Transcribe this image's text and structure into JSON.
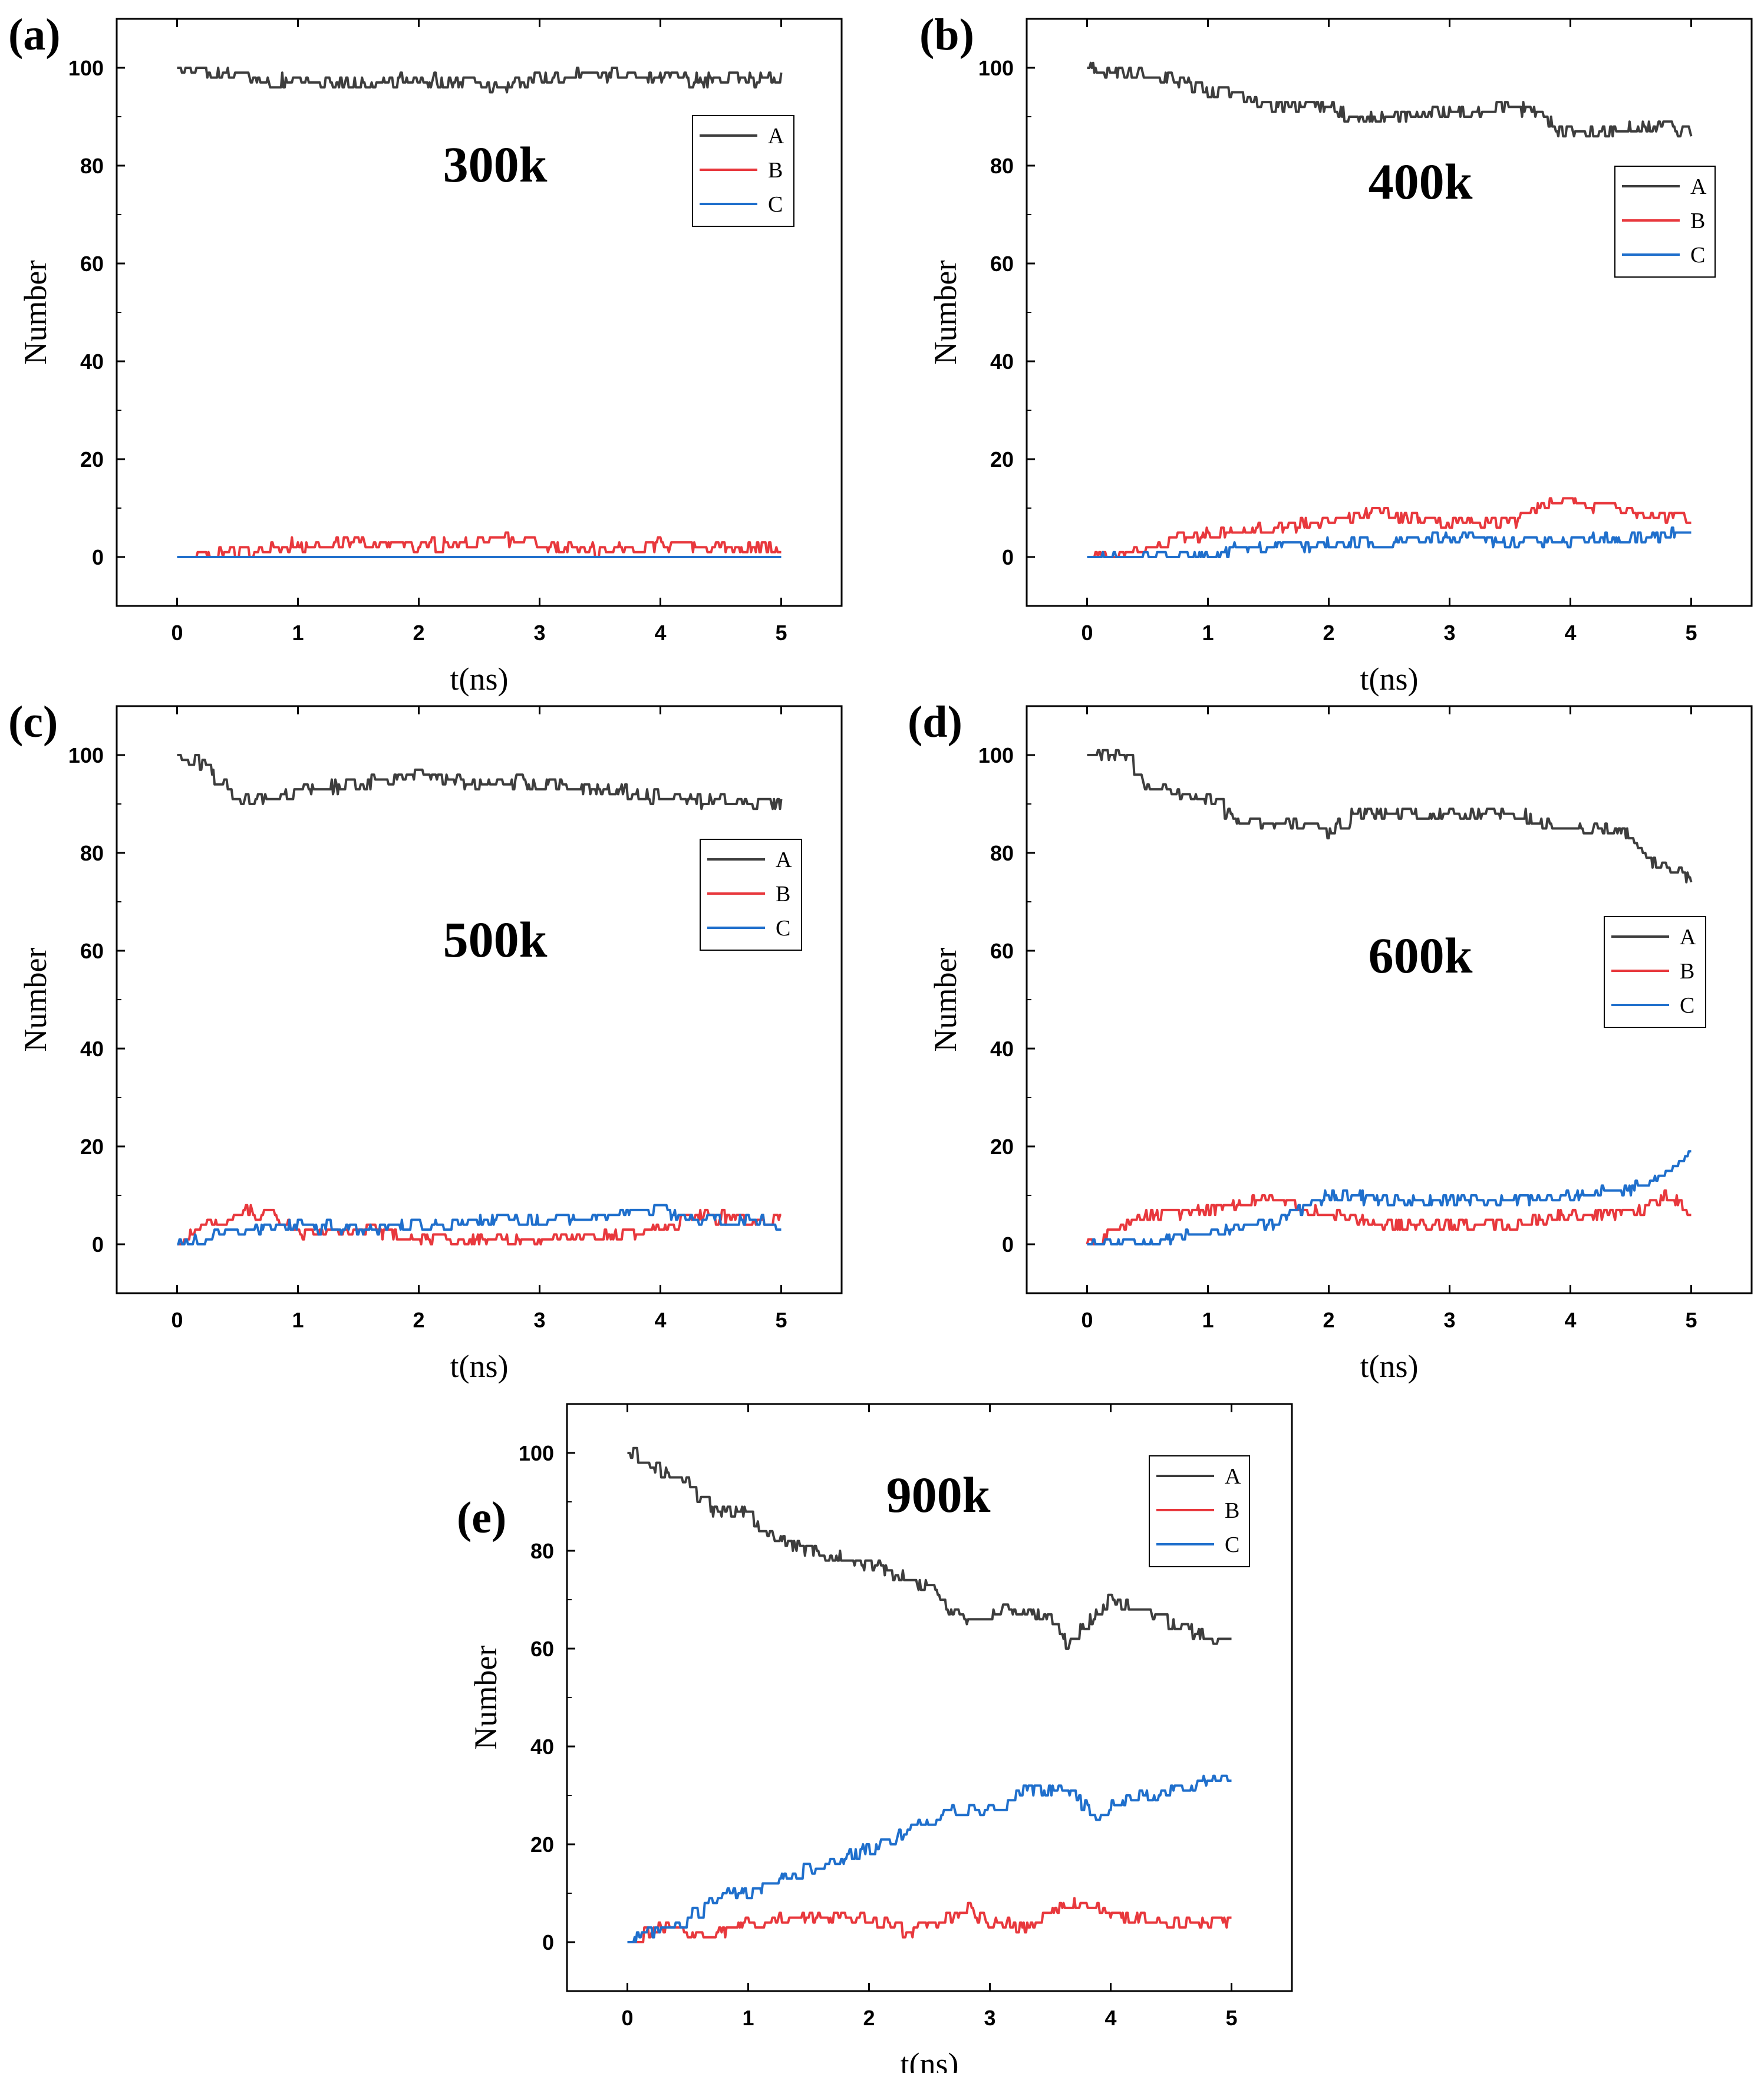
{
  "figure": {
    "background": "#ffffff",
    "series_colors": {
      "A": "#3d3d3d",
      "B": "#e8383d",
      "C": "#1f6fcc"
    }
  },
  "chart_data": [
    {
      "type": "line",
      "panel_label": "(a)",
      "annotation": "300k",
      "xlabel": "t(ns)",
      "ylabel": "Number",
      "xlim": [
        -0.5,
        5.5
      ],
      "ylim": [
        -10,
        110
      ],
      "xticks": [
        0,
        1,
        2,
        3,
        4,
        5
      ],
      "yticks": [
        0,
        20,
        40,
        60,
        80,
        100
      ],
      "legend_position": "top-right",
      "series": [
        {
          "name": "A",
          "x": [
            0,
            0.25,
            0.5,
            0.6,
            1,
            1.5,
            2,
            2.5,
            2.7,
            3,
            3.5,
            4,
            4.5,
            5
          ],
          "y": [
            100,
            99,
            99,
            97,
            97.5,
            97,
            97.5,
            96.5,
            96,
            98,
            98.5,
            98,
            97.5,
            98
          ]
        },
        {
          "name": "B",
          "x": [
            0,
            0.5,
            1,
            1.5,
            2,
            2.5,
            2.6,
            3,
            3.5,
            4,
            4.5,
            5
          ],
          "y": [
            0,
            1,
            2.5,
            3,
            2.5,
            3,
            4.5,
            2,
            1.5,
            2.5,
            2,
            1.5
          ]
        },
        {
          "name": "C",
          "x": [
            0,
            5
          ],
          "y": [
            0,
            0
          ]
        }
      ]
    },
    {
      "type": "line",
      "panel_label": "(b)",
      "annotation": "400k",
      "xlabel": "t(ns)",
      "ylabel": "Number",
      "xlim": [
        -0.5,
        5.5
      ],
      "ylim": [
        -10,
        110
      ],
      "xticks": [
        0,
        1,
        2,
        3,
        4,
        5
      ],
      "yticks": [
        0,
        20,
        40,
        60,
        80,
        100
      ],
      "legend_position": "top-right",
      "series": [
        {
          "name": "A",
          "x": [
            0,
            0.5,
            1,
            1.5,
            2,
            2.3,
            2.5,
            3,
            3.5,
            3.7,
            4,
            4.3,
            4.5,
            5
          ],
          "y": [
            100,
            98.5,
            95.5,
            92.5,
            92,
            89,
            90,
            91,
            92,
            91,
            86,
            87,
            88,
            87
          ]
        },
        {
          "name": "B",
          "x": [
            0,
            0.5,
            1,
            1.5,
            2,
            2.4,
            2.8,
            3,
            3.5,
            3.9,
            4.2,
            4.5,
            5
          ],
          "y": [
            0,
            2,
            5,
            6,
            7,
            9.5,
            7,
            7,
            7,
            12,
            10,
            9,
            8
          ]
        },
        {
          "name": "C",
          "x": [
            0,
            1,
            1.2,
            1.5,
            2,
            2.5,
            3,
            3.5,
            4,
            4.5,
            5
          ],
          "y": [
            0,
            0,
            2,
            2,
            2.5,
            3,
            4,
            3,
            3.5,
            4,
            5
          ]
        }
      ]
    },
    {
      "type": "line",
      "panel_label": "(c)",
      "annotation": "500k",
      "xlabel": "t(ns)",
      "ylabel": "Number",
      "xlim": [
        -0.5,
        5.5
      ],
      "ylim": [
        -10,
        110
      ],
      "xticks": [
        0,
        1,
        2,
        3,
        4,
        5
      ],
      "yticks": [
        0,
        20,
        40,
        60,
        80,
        100
      ],
      "legend_position": "middle-right",
      "series": [
        {
          "name": "A",
          "x": [
            0,
            0.2,
            0.5,
            0.8,
            1,
            1.5,
            2,
            2.5,
            3,
            3.5,
            4,
            4.5,
            5
          ],
          "y": [
            100,
            98,
            91,
            91,
            93,
            94,
            95.5,
            94,
            94.5,
            93,
            91.5,
            90.5,
            90
          ]
        },
        {
          "name": "B",
          "x": [
            0,
            0.2,
            0.5,
            0.8,
            1,
            1.5,
            2,
            2.5,
            3,
            3.5,
            4,
            4.3,
            4.7,
            5
          ],
          "y": [
            0,
            3,
            7,
            6,
            2,
            3,
            1,
            1,
            1,
            2,
            3,
            6,
            5,
            5.5
          ]
        },
        {
          "name": "C",
          "x": [
            0,
            0.3,
            0.6,
            1,
            1.5,
            2,
            2.5,
            3,
            3.5,
            4,
            4.3,
            4.7,
            5
          ],
          "y": [
            0,
            2,
            3,
            4,
            3,
            4,
            5,
            5,
            6,
            7,
            5,
            5,
            4
          ]
        }
      ]
    },
    {
      "type": "line",
      "panel_label": "(d)",
      "annotation": "600k",
      "xlabel": "t(ns)",
      "ylabel": "Number",
      "xlim": [
        -0.5,
        5.5
      ],
      "ylim": [
        -10,
        110
      ],
      "xticks": [
        0,
        1,
        2,
        3,
        4,
        5
      ],
      "yticks": [
        0,
        20,
        40,
        60,
        80,
        100
      ],
      "legend_position": "middle-right",
      "series": [
        {
          "name": "A",
          "x": [
            0,
            0.3,
            0.5,
            1,
            1.3,
            1.7,
            2,
            2.2,
            2.5,
            3,
            3.5,
            4,
            4.4,
            4.7,
            5
          ],
          "y": [
            100,
            100,
            93,
            91,
            86,
            86,
            84,
            88,
            88,
            88,
            88,
            85,
            85,
            78,
            75
          ]
        },
        {
          "name": "B",
          "x": [
            0,
            0.5,
            1,
            1.2,
            1.5,
            1.8,
            2,
            2.5,
            3,
            3.5,
            4,
            4.5,
            4.8,
            5
          ],
          "y": [
            0,
            6,
            7,
            8,
            10,
            7,
            6,
            4,
            4,
            4,
            6,
            6,
            10,
            7
          ]
        },
        {
          "name": "C",
          "x": [
            0,
            0.5,
            1,
            1.5,
            1.8,
            2,
            2.5,
            3,
            3.5,
            4,
            4.5,
            5
          ],
          "y": [
            0,
            0,
            3,
            4,
            8,
            10,
            9,
            9,
            9,
            10,
            11,
            18
          ]
        }
      ]
    },
    {
      "type": "line",
      "panel_label": "(e)",
      "annotation": "900k",
      "xlabel": "t(ns)",
      "ylabel": "Number",
      "xlim": [
        -0.5,
        5.5
      ],
      "ylim": [
        -10,
        110
      ],
      "xticks": [
        0,
        1,
        2,
        3,
        4,
        5
      ],
      "yticks": [
        0,
        20,
        40,
        60,
        80,
        100
      ],
      "legend_position": "top-right",
      "series": [
        {
          "name": "A",
          "x": [
            0,
            0.5,
            0.7,
            1,
            1.1,
            1.5,
            2,
            2.5,
            2.8,
            3,
            3.2,
            3.5,
            3.65,
            4,
            4.5,
            5
          ],
          "y": [
            100,
            94,
            88,
            88,
            84,
            80,
            77,
            73,
            65,
            67,
            68,
            66,
            61,
            70,
            65,
            61
          ]
        },
        {
          "name": "B",
          "x": [
            0,
            0.3,
            0.6,
            1,
            1.5,
            2,
            2.3,
            2.5,
            2.8,
            3,
            3.3,
            3.65,
            4,
            4.5,
            5
          ],
          "y": [
            0,
            3,
            1,
            4,
            5,
            5,
            2,
            3,
            7,
            4,
            3,
            8,
            6,
            4,
            4
          ]
        },
        {
          "name": "C",
          "x": [
            0,
            0.5,
            0.8,
            1,
            1.5,
            2,
            2.5,
            2.8,
            3,
            3.3,
            3.6,
            3.7,
            3.9,
            4,
            4.5,
            5
          ],
          "y": [
            0,
            5,
            10,
            10,
            15,
            19,
            25,
            28,
            27,
            31,
            31,
            30,
            25,
            28,
            31,
            34
          ]
        }
      ]
    }
  ]
}
